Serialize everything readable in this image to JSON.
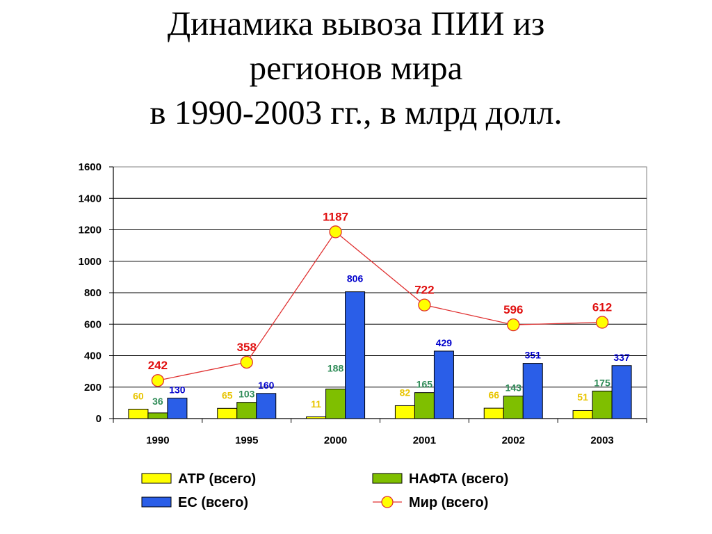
{
  "title": {
    "line1": "Динамика вывоза ПИИ из",
    "line2": "регионов мира",
    "line3": "в 1990-2003 гг., в млрд долл."
  },
  "colors": {
    "atr": "#ffff00",
    "nafta": "#7fbf00",
    "es": "#2a5ee8",
    "mir_line": "#e03030",
    "mir_marker": "#ffff00",
    "atr_label": "#e8c400",
    "nafta_label": "#2e8b57",
    "es_label": "#0000cc",
    "mir_label": "#e01010"
  },
  "chart_data": {
    "type": "bar",
    "categories": [
      "1990",
      "1995",
      "2000",
      "2001",
      "2002",
      "2003"
    ],
    "ylim": [
      0,
      1600
    ],
    "yticks": [
      0,
      200,
      400,
      600,
      800,
      1000,
      1200,
      1400,
      1600
    ],
    "grid": true,
    "legend_position": "bottom",
    "series": [
      {
        "name": "АТР (всего)",
        "type": "bar",
        "values": [
          60,
          65,
          11,
          82,
          66,
          51
        ]
      },
      {
        "name": "НАФТА (всего)",
        "type": "bar",
        "values": [
          36,
          103,
          188,
          165,
          143,
          175
        ]
      },
      {
        "name": "ЕС (всего)",
        "type": "bar",
        "values": [
          130,
          160,
          806,
          429,
          351,
          337
        ]
      },
      {
        "name": "Мир (всего)",
        "type": "line",
        "values": [
          242,
          358,
          1187,
          722,
          596,
          612
        ]
      }
    ]
  }
}
